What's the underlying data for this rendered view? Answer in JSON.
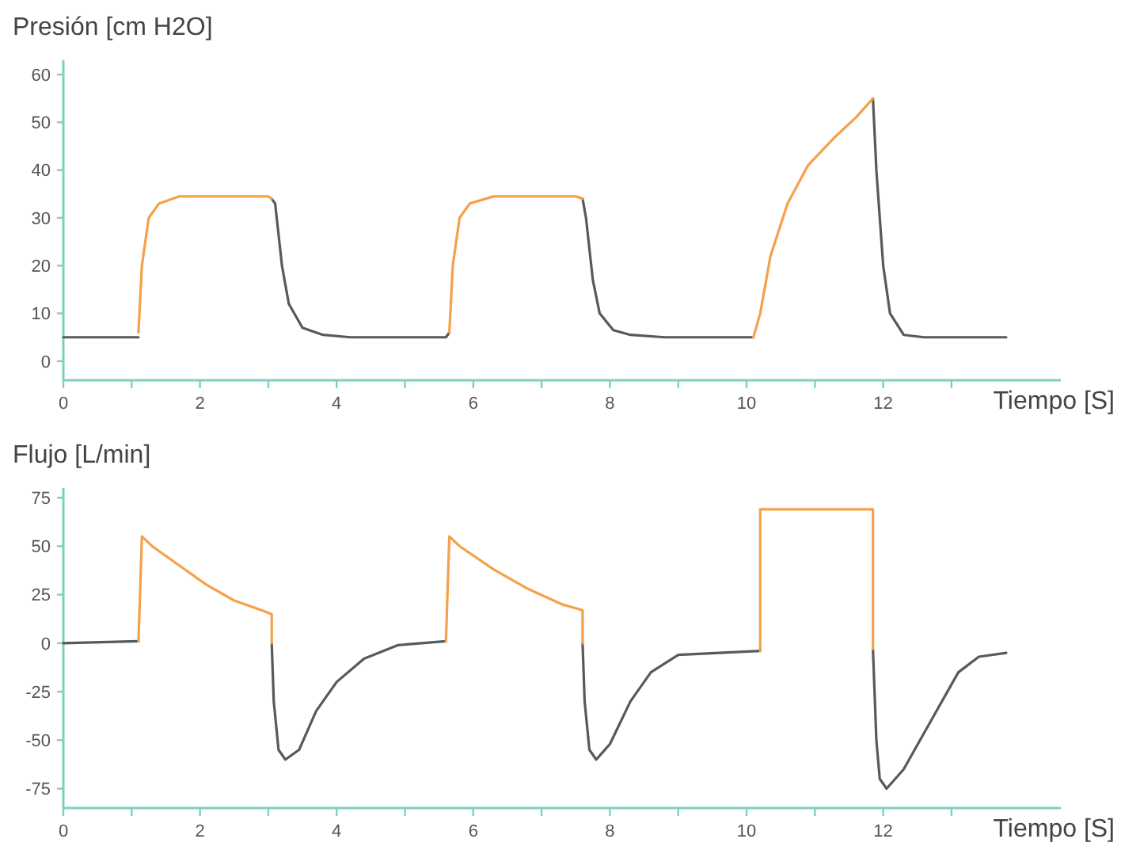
{
  "chart_data": [
    {
      "type": "line",
      "ylabel": "Presión [cm H2O]",
      "xlabel": "Tiempo [S]",
      "xlim": [
        0,
        14.6
      ],
      "ylim": [
        -4,
        63
      ],
      "xticks": [
        0,
        {
          "value": 1,
          "label": null
        },
        2,
        {
          "value": 3,
          "label": null
        },
        4,
        {
          "value": 5,
          "label": null
        },
        6,
        {
          "value": 7,
          "label": null
        },
        8,
        {
          "value": 9,
          "label": null
        },
        10,
        {
          "value": 11,
          "label": null
        },
        12,
        {
          "value": 13,
          "label": null
        }
      ],
      "yticks": [
        0,
        10,
        20,
        30,
        40,
        50,
        60
      ],
      "series": [
        {
          "color": "#555a5e",
          "x": [
            0,
            1.1,
            1.12,
            3.05,
            3.1,
            3.2,
            3.3,
            3.5,
            3.8,
            4.2,
            5.6,
            5.65,
            5.67,
            7.6,
            7.65,
            7.75,
            7.85,
            8.05,
            8.3,
            8.8,
            10.1,
            10.5,
            11.85,
            11.9,
            12.0,
            12.1,
            12.3,
            12.6,
            13.8
          ],
          "values": [
            5,
            5,
            null,
            34,
            33,
            20,
            12,
            7,
            5.5,
            5,
            5,
            6,
            null,
            34,
            30,
            17,
            10,
            6.5,
            5.5,
            5,
            5,
            null,
            55,
            40,
            20,
            10,
            5.5,
            5,
            5
          ]
        },
        {
          "color": "#f5a04a",
          "x": [
            1.1,
            1.15,
            1.25,
            1.4,
            1.7,
            3.0,
            3.05,
            4,
            5.65,
            5.7,
            5.8,
            5.95,
            6.3,
            7.5,
            7.6,
            9,
            10.1,
            10.2,
            10.35,
            10.6,
            10.9,
            11.3,
            11.6,
            11.85
          ],
          "values": [
            6,
            20,
            30,
            33,
            34.5,
            34.5,
            34,
            null,
            6,
            20,
            30,
            33,
            34.5,
            34.5,
            34,
            null,
            5,
            10,
            22,
            33,
            41,
            47,
            51,
            55
          ]
        }
      ]
    },
    {
      "type": "line",
      "ylabel": "Flujo [L/min]",
      "xlabel": "Tiempo [S]",
      "xlim": [
        0,
        14.6
      ],
      "ylim": [
        -85,
        80
      ],
      "xticks": [
        0,
        {
          "value": 1,
          "label": null
        },
        2,
        {
          "value": 3,
          "label": null
        },
        4,
        {
          "value": 5,
          "label": null
        },
        6,
        {
          "value": 7,
          "label": null
        },
        8,
        {
          "value": 9,
          "label": null
        },
        10,
        {
          "value": 11,
          "label": null
        },
        12,
        {
          "value": 13,
          "label": null
        }
      ],
      "yticks": [
        -75,
        -50,
        -25,
        0,
        25,
        50,
        75
      ],
      "series": [
        {
          "color": "#555a5e",
          "x": [
            0,
            1.1,
            1.12,
            3.05,
            3.08,
            3.15,
            3.25,
            3.45,
            3.7,
            4.0,
            4.4,
            4.9,
            5.6,
            5.62,
            7.6,
            7.63,
            7.7,
            7.8,
            8.0,
            8.3,
            8.6,
            9.0,
            10.2,
            10.5,
            11.85,
            11.9,
            11.95,
            12.05,
            12.3,
            12.7,
            13.1,
            13.4,
            13.8
          ],
          "values": [
            0,
            1,
            null,
            0,
            -30,
            -55,
            -60,
            -55,
            -35,
            -20,
            -8,
            -1,
            1,
            null,
            0,
            -30,
            -55,
            -60,
            -52,
            -30,
            -15,
            -6,
            -4,
            null,
            -3,
            -50,
            -70,
            -75,
            -65,
            -40,
            -15,
            -7,
            -5
          ]
        },
        {
          "color": "#f5a04a",
          "x": [
            1.1,
            1.15,
            1.3,
            1.7,
            2.1,
            2.5,
            2.9,
            3.05,
            3.05,
            4,
            5.6,
            5.65,
            5.8,
            6.3,
            6.8,
            7.3,
            7.6,
            7.6,
            9,
            10.2,
            10.2,
            11.85,
            11.85
          ],
          "values": [
            1,
            55,
            50,
            40,
            30,
            22,
            17,
            15,
            0,
            null,
            1,
            55,
            50,
            38,
            28,
            20,
            17,
            0,
            null,
            -4,
            69,
            69,
            -3
          ]
        }
      ]
    }
  ]
}
